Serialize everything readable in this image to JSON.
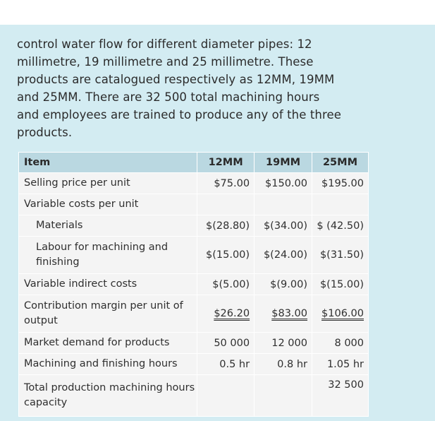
{
  "paragraph": {
    "lines": [
      "control water flow for different diameter pipes: 12",
      "millimetre, 19 millimetre and 25 millimetre. These",
      "products are catalogued respectively as 12MM, 19MM",
      "and 25MM. There are 32 500 total machining hours",
      "and employees are trained to produce any of the three",
      "products."
    ]
  },
  "table": {
    "headers": [
      "Item",
      "12MM",
      "19MM",
      "25MM"
    ],
    "rows": [
      {
        "label": "Selling price per unit",
        "values": [
          "$75.00",
          "$150.00",
          "$195.00"
        ]
      },
      {
        "label": "Variable costs per unit",
        "values": [
          "",
          "",
          ""
        ]
      },
      {
        "label": "Materials",
        "values": [
          "$(28.80)",
          "$(34.00)",
          "$ (42.50)"
        ]
      },
      {
        "label": "Labour for machining and finishing",
        "values": [
          "$(15.00)",
          "$(24.00)",
          "$(31.50)"
        ]
      },
      {
        "label": "Variable indirect costs",
        "values": [
          "$(5.00)",
          "$(9.00)",
          "$(15.00)"
        ]
      },
      {
        "label": "Contribution margin per unit of output",
        "values": [
          "$26.20",
          "$83.00",
          "$106.00"
        ]
      },
      {
        "label": "Market demand for products",
        "values": [
          "50 000",
          "12 000",
          "8 000"
        ]
      },
      {
        "label": "Machining and finishing hours",
        "values": [
          "0.5 hr",
          "0.8 hr",
          "1.05 hr"
        ]
      },
      {
        "label": "Total production machining hours capacity",
        "values": [
          "",
          "",
          "32 500"
        ]
      }
    ]
  }
}
